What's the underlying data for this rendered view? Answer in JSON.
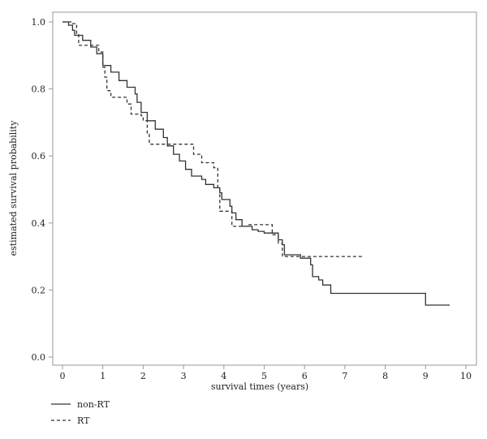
{
  "chart_data": {
    "type": "line",
    "title": "",
    "xlabel": "survival times (years)",
    "ylabel": "estimated survival probability",
    "xlim": [
      0,
      10
    ],
    "ylim": [
      0.0,
      1.0
    ],
    "xticks": [
      "0",
      "1",
      "2",
      "3",
      "4",
      "5",
      "6",
      "7",
      "8",
      "9",
      "10"
    ],
    "yticks": [
      "0.0",
      "0.2",
      "0.4",
      "0.6",
      "0.8",
      "1.0"
    ],
    "grid": false,
    "legend_position": "bottom-left",
    "series": [
      {
        "name": "non-RT",
        "line_style": "solid",
        "color": "#333333",
        "step_points": [
          [
            0.0,
            1.0
          ],
          [
            0.15,
            0.99
          ],
          [
            0.25,
            0.975
          ],
          [
            0.3,
            0.96
          ],
          [
            0.5,
            0.945
          ],
          [
            0.7,
            0.925
          ],
          [
            0.85,
            0.905
          ],
          [
            1.0,
            0.87
          ],
          [
            1.2,
            0.85
          ],
          [
            1.4,
            0.825
          ],
          [
            1.6,
            0.805
          ],
          [
            1.8,
            0.785
          ],
          [
            1.85,
            0.76
          ],
          [
            1.95,
            0.73
          ],
          [
            2.1,
            0.705
          ],
          [
            2.3,
            0.68
          ],
          [
            2.5,
            0.655
          ],
          [
            2.6,
            0.63
          ],
          [
            2.75,
            0.605
          ],
          [
            2.9,
            0.585
          ],
          [
            3.05,
            0.56
          ],
          [
            3.2,
            0.54
          ],
          [
            3.45,
            0.53
          ],
          [
            3.55,
            0.515
          ],
          [
            3.75,
            0.505
          ],
          [
            3.9,
            0.49
          ],
          [
            3.95,
            0.47
          ],
          [
            4.15,
            0.45
          ],
          [
            4.2,
            0.43
          ],
          [
            4.3,
            0.41
          ],
          [
            4.45,
            0.39
          ],
          [
            4.7,
            0.38
          ],
          [
            4.85,
            0.375
          ],
          [
            5.0,
            0.37
          ],
          [
            5.35,
            0.35
          ],
          [
            5.45,
            0.335
          ],
          [
            5.5,
            0.305
          ],
          [
            5.9,
            0.295
          ],
          [
            6.15,
            0.275
          ],
          [
            6.2,
            0.24
          ],
          [
            6.35,
            0.23
          ],
          [
            6.45,
            0.215
          ],
          [
            6.65,
            0.19
          ],
          [
            8.98,
            0.19
          ],
          [
            9.0,
            0.155
          ],
          [
            9.6,
            0.155
          ]
        ]
      },
      {
        "name": "RT",
        "line_style": "dashed",
        "color": "#333333",
        "step_points": [
          [
            0.0,
            1.0
          ],
          [
            0.25,
            0.995
          ],
          [
            0.35,
            0.965
          ],
          [
            0.4,
            0.93
          ],
          [
            0.85,
            0.93
          ],
          [
            0.9,
            0.91
          ],
          [
            1.0,
            0.865
          ],
          [
            1.05,
            0.835
          ],
          [
            1.1,
            0.795
          ],
          [
            1.2,
            0.775
          ],
          [
            1.6,
            0.755
          ],
          [
            1.7,
            0.725
          ],
          [
            1.95,
            0.72
          ],
          [
            2.0,
            0.705
          ],
          [
            2.1,
            0.665
          ],
          [
            2.15,
            0.635
          ],
          [
            2.6,
            0.635
          ],
          [
            3.25,
            0.605
          ],
          [
            3.45,
            0.58
          ],
          [
            3.75,
            0.565
          ],
          [
            3.85,
            0.505
          ],
          [
            3.9,
            0.435
          ],
          [
            4.2,
            0.39
          ],
          [
            4.6,
            0.395
          ],
          [
            5.2,
            0.365
          ],
          [
            5.35,
            0.34
          ],
          [
            5.45,
            0.3
          ],
          [
            7.45,
            0.3
          ]
        ]
      }
    ]
  }
}
